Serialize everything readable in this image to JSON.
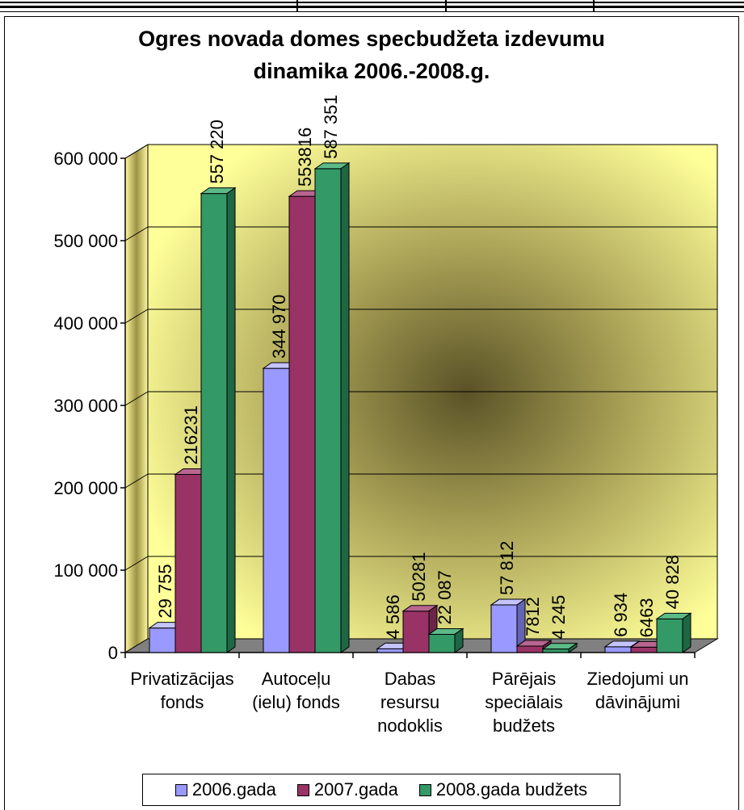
{
  "chart_data": {
    "type": "bar",
    "title_lines": [
      "Ogres novada domes specbudžeta izdevumu",
      "dinamika 2006.-2008.g."
    ],
    "categories": [
      [
        "Privatizācijas",
        "fonds"
      ],
      [
        "Autoceļu",
        "(ielu) fonds"
      ],
      [
        "Dabas",
        "resursu",
        "nodoklis"
      ],
      [
        "Pārējais",
        "speciālais",
        "budžets"
      ],
      [
        "Ziedojumi un",
        "dāvinājumi"
      ]
    ],
    "series": [
      {
        "name": "2006.gada",
        "values": [
          29755,
          344970,
          4586,
          57812,
          6934
        ],
        "labels": [
          "29 755",
          "344 970",
          "4 586",
          "57 812",
          "6 934"
        ]
      },
      {
        "name": "2007.gada",
        "values": [
          216231,
          553816,
          50281,
          7812,
          6463
        ],
        "labels": [
          "216231",
          "553816",
          "50281",
          "7812",
          "6463"
        ]
      },
      {
        "name": "2008.gada budžets",
        "values": [
          557220,
          587351,
          22087,
          4245,
          40828
        ],
        "labels": [
          "557 220",
          "587 351",
          "22 087",
          "4 245",
          "40 828"
        ]
      }
    ],
    "y_ticks": [
      {
        "value": 0,
        "label": "0"
      },
      {
        "value": 100000,
        "label": "100 000"
      },
      {
        "value": 200000,
        "label": "200 000"
      },
      {
        "value": 300000,
        "label": "300 000"
      },
      {
        "value": 400000,
        "label": "400 000"
      },
      {
        "value": 500000,
        "label": "500 000"
      },
      {
        "value": 600000,
        "label": "600 000"
      }
    ],
    "ylim": [
      0,
      600000
    ],
    "grid": true,
    "legend_position": "bottom",
    "colors": {
      "series": [
        "#9999ff",
        "#993366",
        "#339966"
      ],
      "series_top": [
        "#c4c4ff",
        "#b86690",
        "#5cba88"
      ],
      "series_side": [
        "#6464b4",
        "#6b2447",
        "#1f6644"
      ],
      "wall_light": "#ffff99",
      "wall_dark": "#5a5226",
      "floor": "#808080"
    }
  }
}
